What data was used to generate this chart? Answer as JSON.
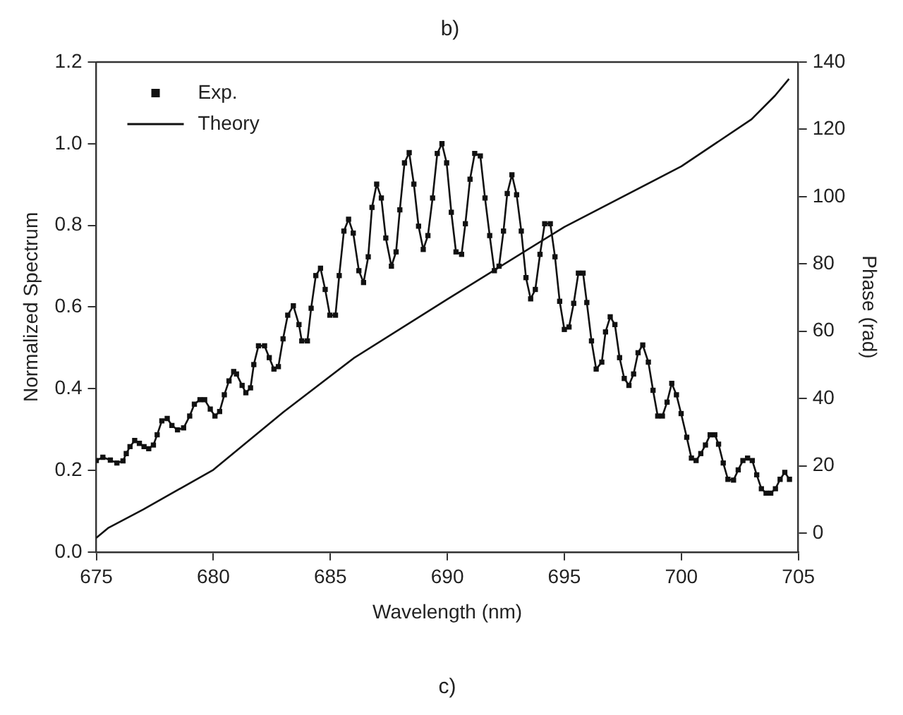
{
  "chart_data": {
    "type": "line",
    "title": "b)",
    "xlabel": "Wavelength (nm)",
    "ylabel": "Normalized Spectrum",
    "y2label": "Phase (rad)",
    "annotations": [
      "c)"
    ],
    "xlim": [
      675,
      705
    ],
    "xticks": [
      675,
      680,
      685,
      690,
      695,
      700,
      705
    ],
    "ylim": [
      0,
      1.2
    ],
    "yticks": [
      {
        "value": 0,
        "label": "0.0"
      },
      {
        "value": 0.2,
        "label": "0.2"
      },
      {
        "value": 0.4,
        "label": "0.4"
      },
      {
        "value": 0.6,
        "label": "0.6"
      },
      {
        "value": 0.8,
        "label": "0.8"
      },
      {
        "value": 1,
        "label": "1.0"
      },
      {
        "value": 1.2,
        "label": "1.2"
      }
    ],
    "y2lim": [
      -5.6,
      140
    ],
    "y2ticks": [
      0,
      20,
      40,
      60,
      80,
      100,
      120,
      140
    ],
    "grid": false,
    "legend": "top left",
    "series": [
      {
        "name": "Exp.",
        "color": "#111111",
        "marker": "square",
        "line_style": "solid",
        "x": [
          675.0,
          675.28,
          675.6,
          675.88,
          676.14,
          676.28,
          676.44,
          676.64,
          676.84,
          677.04,
          677.24,
          677.44,
          677.6,
          677.8,
          678.03,
          678.23,
          678.47,
          678.73,
          678.99,
          679.19,
          679.43,
          679.63,
          679.87,
          680.07,
          680.27,
          680.47,
          680.67,
          680.87,
          680.99,
          681.23,
          681.39,
          681.59,
          681.73,
          681.93,
          682.19,
          682.39,
          682.59,
          682.78,
          682.98,
          683.18,
          683.42,
          683.66,
          683.78,
          684.02,
          684.18,
          684.38,
          684.58,
          684.78,
          684.98,
          685.22,
          685.38,
          685.58,
          685.78,
          685.98,
          686.22,
          686.42,
          686.62,
          686.78,
          686.98,
          687.18,
          687.37,
          687.61,
          687.81,
          687.97,
          688.17,
          688.37,
          688.57,
          688.77,
          688.97,
          689.17,
          689.37,
          689.57,
          689.77,
          689.97,
          690.17,
          690.37,
          690.61,
          690.77,
          690.97,
          691.17,
          691.41,
          691.61,
          691.81,
          692.01,
          692.21,
          692.4,
          692.56,
          692.76,
          692.96,
          693.16,
          693.36,
          693.56,
          693.76,
          693.96,
          694.16,
          694.4,
          694.6,
          694.8,
          695.0,
          695.2,
          695.4,
          695.6,
          695.8,
          695.96,
          696.16,
          696.36,
          696.6,
          696.76,
          696.96,
          697.16,
          697.36,
          697.56,
          697.76,
          697.96,
          698.15,
          698.35,
          698.59,
          698.79,
          698.99,
          699.19,
          699.39,
          699.59,
          699.79,
          699.99,
          700.23,
          700.43,
          700.63,
          700.83,
          701.03,
          701.23,
          701.43,
          701.59,
          701.79,
          701.99,
          702.23,
          702.43,
          702.63,
          702.83,
          703.03,
          703.22,
          703.42,
          703.62,
          703.82,
          704.02,
          704.22,
          704.42,
          704.62
        ],
        "values": [
          0.224,
          0.232,
          0.225,
          0.218,
          0.223,
          0.241,
          0.258,
          0.273,
          0.266,
          0.258,
          0.253,
          0.262,
          0.287,
          0.321,
          0.327,
          0.31,
          0.299,
          0.304,
          0.333,
          0.362,
          0.373,
          0.373,
          0.35,
          0.333,
          0.344,
          0.385,
          0.419,
          0.442,
          0.436,
          0.408,
          0.39,
          0.402,
          0.459,
          0.505,
          0.505,
          0.476,
          0.448,
          0.454,
          0.522,
          0.58,
          0.603,
          0.557,
          0.517,
          0.517,
          0.597,
          0.677,
          0.695,
          0.643,
          0.58,
          0.58,
          0.677,
          0.786,
          0.815,
          0.781,
          0.689,
          0.66,
          0.723,
          0.844,
          0.901,
          0.867,
          0.769,
          0.7,
          0.735,
          0.838,
          0.953,
          0.978,
          0.901,
          0.798,
          0.741,
          0.775,
          0.867,
          0.976,
          1.0,
          0.953,
          0.832,
          0.735,
          0.729,
          0.804,
          0.913,
          0.976,
          0.97,
          0.867,
          0.775,
          0.689,
          0.7,
          0.786,
          0.878,
          0.924,
          0.875,
          0.786,
          0.672,
          0.62,
          0.643,
          0.729,
          0.804,
          0.804,
          0.723,
          0.614,
          0.545,
          0.551,
          0.609,
          0.683,
          0.683,
          0.611,
          0.517,
          0.448,
          0.465,
          0.539,
          0.576,
          0.557,
          0.476,
          0.425,
          0.408,
          0.436,
          0.488,
          0.507,
          0.465,
          0.396,
          0.333,
          0.333,
          0.367,
          0.413,
          0.385,
          0.339,
          0.281,
          0.23,
          0.224,
          0.241,
          0.262,
          0.287,
          0.287,
          0.264,
          0.218,
          0.178,
          0.176,
          0.201,
          0.224,
          0.23,
          0.224,
          0.189,
          0.155,
          0.144,
          0.144,
          0.155,
          0.178,
          0.195,
          0.178
        ]
      },
      {
        "name": "Theory",
        "color": "#111111",
        "marker": "none",
        "line_style": "solid",
        "axis": "y2",
        "x": [
          675,
          675.5,
          677,
          680,
          683,
          686,
          690,
          695,
          700,
          703,
          704,
          704.6
        ],
        "values": [
          -1.4,
          1.5,
          7,
          18.8,
          36,
          52,
          69.5,
          91,
          109,
          123,
          130,
          135
        ]
      }
    ]
  }
}
